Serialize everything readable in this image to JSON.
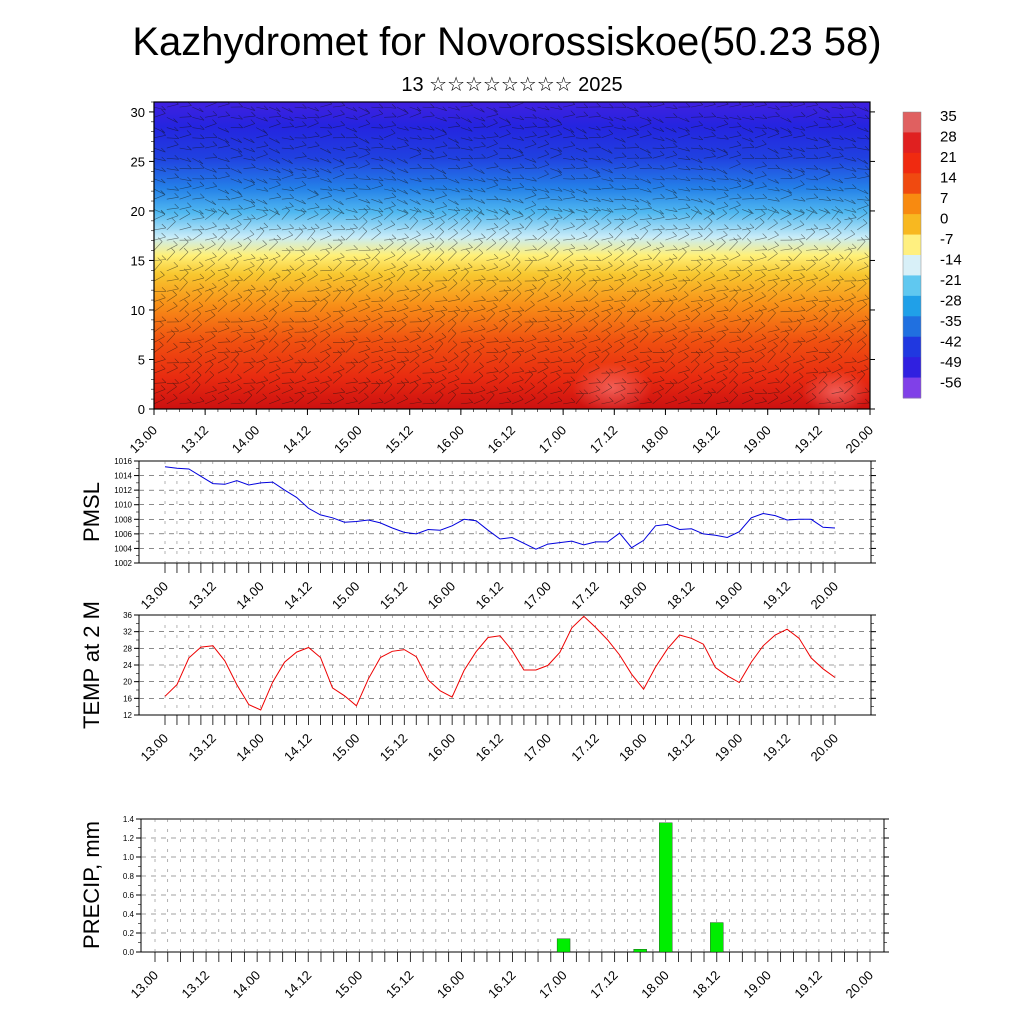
{
  "header": {
    "title": "Kazhydromet for Novorossiskoe(50.23 58)",
    "subtitle": "13 ☆☆☆☆☆☆☆☆ 2025"
  },
  "time_ticks": [
    "13.00",
    "13.12",
    "14.00",
    "14.12",
    "15.00",
    "15.12",
    "16.00",
    "16.12",
    "17.00",
    "17.12",
    "18.00",
    "18.12",
    "19.00",
    "19.12",
    "20.00"
  ],
  "colors": {
    "pmsl_line": "#0000dd",
    "temp_line": "#ee0000",
    "precip_bar": "#00ee00"
  },
  "chart_data": [
    {
      "type": "heatmap",
      "xlabel": "",
      "ylabel": "",
      "yticks": [
        0,
        5,
        10,
        15,
        20,
        25,
        30
      ],
      "ylim": [
        0,
        31
      ],
      "colorbar": {
        "labels": [
          "35",
          "28",
          "21",
          "14",
          "7",
          "0",
          "-7",
          "-14",
          "-21",
          "-28",
          "-35",
          "-42",
          "-49",
          "-56"
        ],
        "colors": [
          "#e06060",
          "#e02020",
          "#f02a10",
          "#f04a10",
          "#f88a10",
          "#f8b820",
          "#fff080",
          "#d8f0f8",
          "#60c8f0",
          "#20a0e8",
          "#2070e0",
          "#2038e0",
          "#3020e0",
          "#8040e8"
        ]
      }
    },
    {
      "type": "line",
      "ylabel": "PMSL",
      "ylim": [
        1002,
        1016
      ],
      "yticks": [
        "1002",
        "1004",
        "1006",
        "1008",
        "1010",
        "1012",
        "1014",
        "1016"
      ],
      "x": [
        0,
        3,
        6,
        9,
        12,
        15,
        18,
        21,
        24,
        27,
        30,
        33,
        36,
        39,
        42,
        45,
        48,
        51,
        54,
        57,
        60,
        63,
        66,
        69,
        72,
        75,
        78,
        81,
        84,
        87,
        90,
        93,
        96,
        99,
        102,
        105,
        108,
        111,
        114,
        117,
        120,
        123,
        126,
        129,
        132,
        135,
        138,
        141,
        144,
        147,
        150,
        153,
        156,
        159,
        162,
        165,
        168
      ],
      "series": [
        {
          "name": "",
          "values": [
            1015.2,
            1015.0,
            1014.9,
            1013.9,
            1012.9,
            1012.8,
            1013.3,
            1012.7,
            1013.0,
            1013.1,
            1012.0,
            1011.0,
            1009.5,
            1008.6,
            1008.2,
            1007.6,
            1007.7,
            1007.9,
            1007.5,
            1006.8,
            1006.2,
            1006.0,
            1006.6,
            1006.5,
            1007.1,
            1008.0,
            1007.8,
            1006.5,
            1005.3,
            1005.5,
            1004.7,
            1003.9,
            1004.6,
            1004.8,
            1005.0,
            1004.5,
            1004.9,
            1004.9,
            1006.1,
            1004.1,
            1005.1,
            1007.1,
            1007.3,
            1006.6,
            1006.7,
            1006.0,
            1005.8,
            1005.5,
            1006.3,
            1008.2,
            1008.8,
            1008.5,
            1007.9,
            1008.0,
            1008.0,
            1006.9,
            1006.8
          ]
        }
      ]
    },
    {
      "type": "line",
      "ylabel": "TEMP at 2 M",
      "ylim": [
        12,
        36
      ],
      "yticks": [
        "12",
        "16",
        "20",
        "24",
        "28",
        "32",
        "36"
      ],
      "x": [
        0,
        3,
        6,
        9,
        12,
        15,
        18,
        21,
        24,
        27,
        30,
        33,
        36,
        39,
        42,
        45,
        48,
        51,
        54,
        57,
        60,
        63,
        66,
        69,
        72,
        75,
        78,
        81,
        84,
        87,
        90,
        93,
        96,
        99,
        102,
        105,
        108,
        111,
        114,
        117,
        120,
        123,
        126,
        129,
        132,
        135,
        138,
        141,
        144,
        147,
        150,
        153,
        156,
        159,
        162,
        165,
        168
      ],
      "series": [
        {
          "name": "",
          "values": [
            16.5,
            19.3,
            25.7,
            28.3,
            28.6,
            25.0,
            19.3,
            14.5,
            13.2,
            19.9,
            24.7,
            27.1,
            28.2,
            25.8,
            18.5,
            16.6,
            14.2,
            20.7,
            25.8,
            27.3,
            27.7,
            26.0,
            20.4,
            17.8,
            16.3,
            22.7,
            27.2,
            30.6,
            31.0,
            27.5,
            22.8,
            22.8,
            23.9,
            27.0,
            32.9,
            35.7,
            33.0,
            30.0,
            26.4,
            21.8,
            18.2,
            23.5,
            27.9,
            31.2,
            30.4,
            29.0,
            23.4,
            21.4,
            19.8,
            24.7,
            28.6,
            31.2,
            32.6,
            30.4,
            25.7,
            23.1,
            21.0
          ]
        }
      ]
    },
    {
      "type": "bar",
      "ylabel": "PRECIP, mm",
      "ylim": [
        0,
        1.4
      ],
      "yticks": [
        "0.0",
        "0.2",
        "0.4",
        "0.6",
        "0.8",
        "1.0",
        "1.2",
        "1.4"
      ],
      "x": [
        96,
        114,
        120,
        132
      ],
      "series": [
        {
          "name": "",
          "values": [
            0.14,
            0.03,
            1.36,
            0.31
          ]
        }
      ]
    }
  ]
}
